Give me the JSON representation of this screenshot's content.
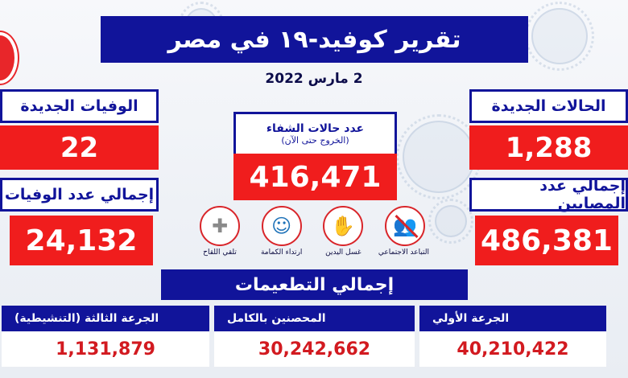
{
  "title": "تقرير كوفيد-١٩ في مصر",
  "date": "2 مارس 2022",
  "new_cases": {
    "label": "الحالات الجديدة",
    "value": "1,288"
  },
  "total_cases": {
    "label": "إجمالي عدد المصابين",
    "value": "486,381"
  },
  "new_deaths": {
    "label": "الوفيات الجديدة",
    "value": "22"
  },
  "total_deaths": {
    "label": "إجمالي عدد الوفيات",
    "value": "24,132"
  },
  "recoveries": {
    "label": "عدد حالات الشفاء",
    "sublabel": "(الخروج حتى الآن)",
    "value": "416,471"
  },
  "icons": [
    {
      "name": "social-distancing-icon",
      "caption": "التباعد الاجتماعي"
    },
    {
      "name": "hand-washing-icon",
      "caption": "غسل اليدين"
    },
    {
      "name": "face-mask-icon",
      "caption": "ارتداء الكمامة"
    },
    {
      "name": "vaccine-syringe-icon",
      "caption": "تلقي اللقاح"
    }
  ],
  "vaccinations": {
    "title": "إجمالي التطعيمات",
    "first_dose": {
      "label": "الجرعة الأولي",
      "value": "40,210,422"
    },
    "fully_vaccinated": {
      "label": "المحصنين بالكامل",
      "value": "30,242,662"
    },
    "third_dose": {
      "label": "الجرعة الثالثة (التنشيطية)",
      "value": "1,131,879"
    }
  },
  "colors": {
    "navy": "#11149a",
    "red": "#f01d1d",
    "value_red": "#d21a20"
  }
}
